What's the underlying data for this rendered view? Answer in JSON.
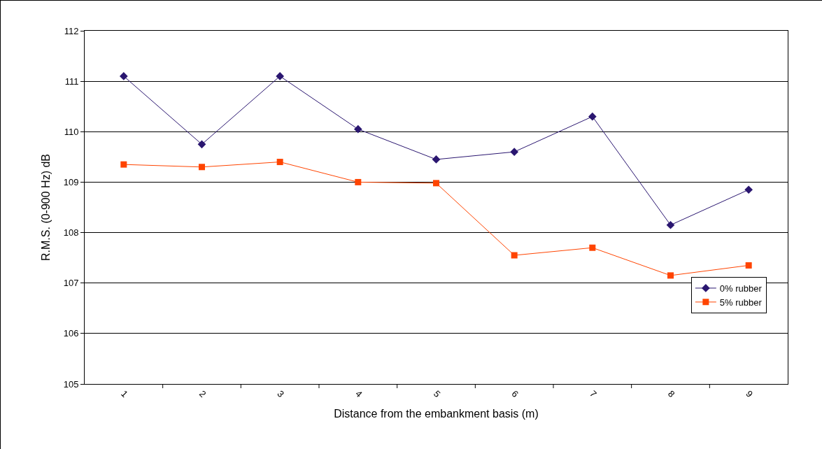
{
  "chart_data": {
    "type": "line",
    "xlabel": "Distance from the embankment basis (m)",
    "ylabel": "R.M.S. (0-900 Hz) dB",
    "categories": [
      "1",
      "2",
      "3",
      "4",
      "5",
      "6",
      "7",
      "8",
      "9"
    ],
    "series": [
      {
        "name": "0% rubber",
        "color": "#2a1670",
        "marker": "diamond",
        "values": [
          111.1,
          109.75,
          111.1,
          110.05,
          109.45,
          109.6,
          110.3,
          108.15,
          108.85
        ]
      },
      {
        "name": "5% rubber",
        "color": "#ff4400",
        "marker": "square",
        "values": [
          109.35,
          109.3,
          109.4,
          109.0,
          108.98,
          107.55,
          107.7,
          107.15,
          107.35
        ]
      }
    ],
    "ylim": [
      105,
      112
    ],
    "yticks": [
      105,
      106,
      107,
      108,
      109,
      110,
      111,
      112
    ],
    "grid": "y",
    "legend": "bottom right",
    "line_style": "solid"
  }
}
